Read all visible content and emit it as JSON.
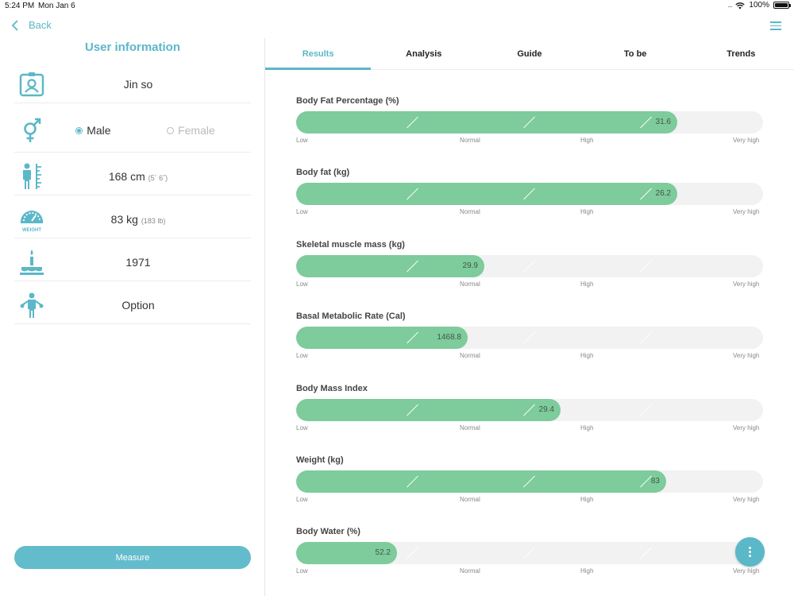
{
  "status": {
    "time": "5:24 PM",
    "date": "Mon Jan 6",
    "signal": "....",
    "battery": "100%"
  },
  "nav": {
    "back_label": "Back",
    "menu_icon": "hamburger-icon"
  },
  "left": {
    "title": "User information",
    "name": "Jin so",
    "gender": {
      "male": "Male",
      "female": "Female",
      "selected": "Male"
    },
    "height": {
      "value": "168 cm",
      "sub": "(5´ 6˝)"
    },
    "weight": {
      "value": "83 kg",
      "sub": "(183 lb)",
      "icon_label": "WEIGHT"
    },
    "birth_year": "1971",
    "option": "Option",
    "measure_label": "Measure"
  },
  "tabs": [
    "Results",
    "Analysis",
    "Guide",
    "To be",
    "Trends"
  ],
  "scale_labels": [
    "Low",
    "Normal",
    "High",
    "Very high"
  ],
  "metrics": [
    {
      "label": "Body Fat Percentage (%)",
      "value": "31.6",
      "fill": 0.817
    },
    {
      "label": "Body fat (kg)",
      "value": "26.2",
      "fill": 0.817
    },
    {
      "label": "Skeletal muscle mass (kg)",
      "value": "29.9",
      "fill": 0.403
    },
    {
      "label": "Basal Metabolic Rate (Cal)",
      "value": "1468.8",
      "fill": 0.368
    },
    {
      "label": "Body Mass Index",
      "value": "29.4",
      "fill": 0.566
    },
    {
      "label": "Weight (kg)",
      "value": "83",
      "fill": 0.792
    },
    {
      "label": "Body Water (%)",
      "value": "52.2",
      "fill": 0.216
    }
  ],
  "colors": {
    "accent": "#5bb8c8",
    "bar": "#7ecb9b",
    "track": "#f2f2f2"
  }
}
